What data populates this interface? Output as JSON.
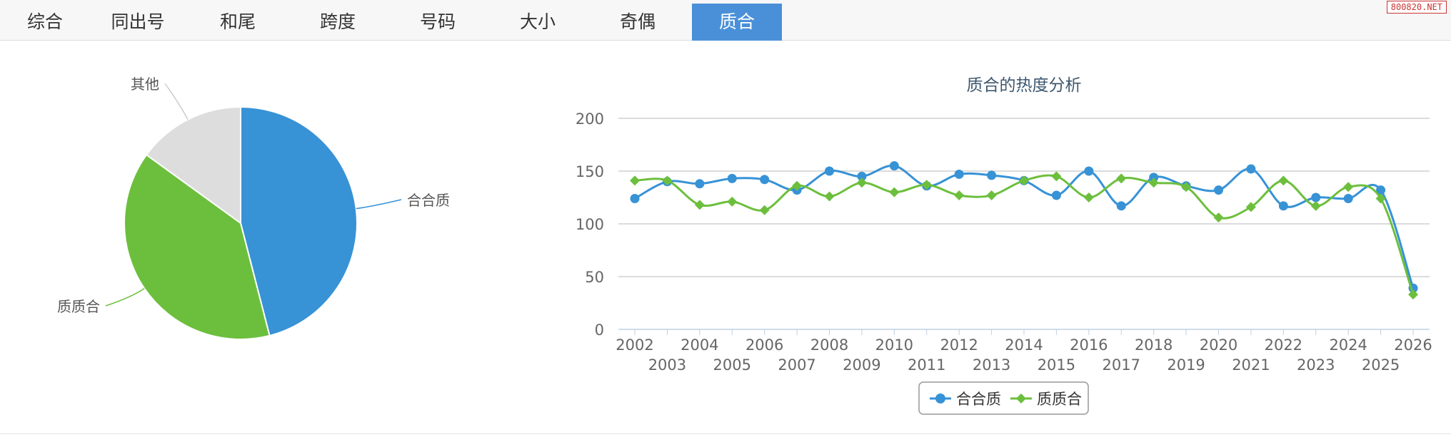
{
  "tabs": [
    "综合",
    "同出号",
    "和尾",
    "跨度",
    "号码",
    "大小",
    "奇偶",
    "质合"
  ],
  "active_tab": 7,
  "watermark": "800820.NET",
  "colors": {
    "blue": "#3792d6",
    "green": "#6cbf3c",
    "gray": "#dddddd",
    "active_tab": "#4a90d9"
  },
  "pie": {
    "type": "pie",
    "slices": [
      {
        "label": "合合质",
        "value": 46,
        "color": "#3792d6"
      },
      {
        "label": "质质合",
        "value": 39,
        "color": "#6cbf3c"
      },
      {
        "label": "其他",
        "value": 15,
        "color": "#dddddd"
      }
    ]
  },
  "chart_data": {
    "type": "line",
    "title": "质合的热度分析",
    "x": [
      2002,
      2003,
      2004,
      2005,
      2006,
      2007,
      2008,
      2009,
      2010,
      2011,
      2012,
      2013,
      2014,
      2015,
      2016,
      2017,
      2018,
      2019,
      2020,
      2021,
      2022,
      2023,
      2024,
      2025,
      2026
    ],
    "ylim": [
      0,
      200
    ],
    "yticks": [
      0,
      50,
      100,
      150,
      200
    ],
    "grid": true,
    "legend_position": "bottom-center",
    "series": [
      {
        "name": "合合质",
        "color": "#3792d6",
        "marker": "circle",
        "values": [
          124,
          140,
          138,
          143,
          142,
          132,
          150,
          145,
          155,
          136,
          147,
          146,
          141,
          127,
          150,
          117,
          144,
          136,
          132,
          152,
          117,
          125,
          124,
          132,
          39
        ]
      },
      {
        "name": "质质合",
        "color": "#6cbf3c",
        "marker": "diamond",
        "values": [
          141,
          141,
          118,
          121,
          113,
          136,
          126,
          139,
          130,
          137,
          127,
          127,
          141,
          145,
          125,
          143,
          139,
          135,
          106,
          116,
          141,
          117,
          135,
          124,
          33
        ]
      }
    ]
  }
}
